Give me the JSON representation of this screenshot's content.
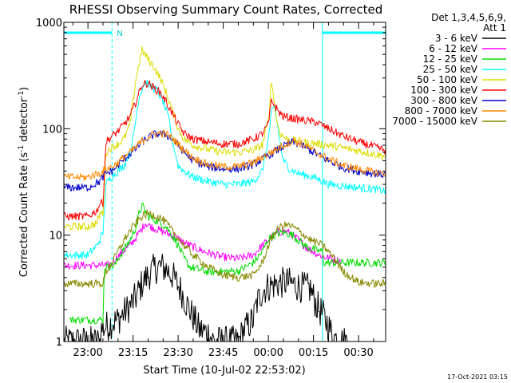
{
  "chart_data": {
    "type": "line",
    "title": "RHESSI Observing Summary Count Rates, Corrected",
    "xlabel": "Start Time (10-Jul-02 22:53:02)",
    "ylabel_main": "Corrected Count Rate (s",
    "ylabel_sup1": "-1",
    "ylabel_mid": " detector",
    "ylabel_sup2": "-1",
    "ylabel_end": ")",
    "yscale": "log",
    "ylim": [
      1,
      1000
    ],
    "xlim_min": [
      -8,
      99
    ],
    "x_units": "minutes after 23:00 on 10-Jul-02",
    "x_ticks": [
      {
        "min": 0,
        "label": "23:00"
      },
      {
        "min": 15,
        "label": "23:15"
      },
      {
        "min": 30,
        "label": "23:30"
      },
      {
        "min": 45,
        "label": "23:45"
      },
      {
        "min": 60,
        "label": "00:00"
      },
      {
        "min": 75,
        "label": "00:15"
      },
      {
        "min": 90,
        "label": "00:30"
      }
    ],
    "y_ticks": [
      {
        "value": 1,
        "label": "1"
      },
      {
        "value": 10,
        "label": "10"
      },
      {
        "value": 100,
        "label": "100"
      },
      {
        "value": 1000,
        "label": "1000"
      }
    ],
    "legend_header": [
      "Det 1,3,4,5,6,9,",
      "Att 1"
    ],
    "legend_position": "right",
    "footer_date": "17-Oct-2021 03:15",
    "night_marker": "N",
    "night_periods": [
      {
        "start_min": -8,
        "end_min": 8
      },
      {
        "start_min": 78,
        "end_min": 99
      }
    ],
    "series": [
      {
        "name": "3 - 6 keV",
        "color": "#000000",
        "x": [
          -8,
          4,
          4.5,
          8,
          10,
          13,
          16,
          18,
          20,
          22,
          24,
          26,
          28,
          31,
          33,
          35,
          37,
          40,
          42,
          50,
          52,
          55,
          56,
          58,
          60,
          63,
          66,
          68,
          70,
          72,
          74,
          75,
          76,
          78,
          80,
          81,
          82,
          84,
          87
        ],
        "y": [
          1,
          1,
          1.3,
          1.5,
          1.6,
          2.0,
          2.6,
          3.5,
          4.2,
          4.8,
          5.1,
          4.8,
          4.2,
          3.0,
          2.2,
          1.7,
          1.3,
          1.2,
          1,
          1,
          1.3,
          1.6,
          2.2,
          3.0,
          3.3,
          3.5,
          3.6,
          3.5,
          3.3,
          3.2,
          3.1,
          2.6,
          2.2,
          1.8,
          1.4,
          1.2,
          1.1,
          1,
          1
        ]
      },
      {
        "name": "6 - 12 keV",
        "color": "#ff00ff",
        "x": [
          -8,
          7,
          8,
          10,
          12,
          14,
          16,
          18,
          19,
          21,
          24,
          28,
          32,
          36,
          40,
          45,
          50,
          55,
          58,
          61,
          63,
          65,
          67,
          69,
          71,
          73,
          75,
          77,
          79,
          81,
          83,
          84
        ],
        "y": [
          5.2,
          5.2,
          5.5,
          6.3,
          7.2,
          8.0,
          9.5,
          11.5,
          13,
          12,
          11,
          10,
          8.5,
          7.5,
          6.8,
          6.2,
          6.0,
          6.5,
          8,
          9.5,
          10.5,
          11,
          10.5,
          9.5,
          8.5,
          7.5,
          7,
          6.5,
          6.2,
          6.0,
          5.8,
          5.8
        ]
      },
      {
        "name": "12 - 25 keV",
        "color": "#00dd00",
        "x": [
          -6,
          5,
          5.5,
          9,
          10,
          12,
          14,
          16,
          17,
          18,
          19,
          20,
          22,
          24,
          26,
          28,
          30,
          32,
          34,
          40,
          50,
          55,
          58,
          60,
          62,
          64,
          66,
          68,
          70,
          72,
          74,
          76,
          78,
          78.5,
          82,
          90,
          99
        ],
        "y": [
          1.6,
          1.6,
          5.0,
          5.2,
          6.0,
          7.3,
          9.0,
          12,
          16,
          19,
          17,
          15,
          14,
          13,
          12,
          10,
          8.0,
          6.0,
          5.0,
          4.5,
          4.6,
          5.5,
          7,
          9.2,
          10,
          10.5,
          10.5,
          10,
          9.0,
          8.0,
          7.5,
          7.2,
          7.0,
          5.5,
          5.5,
          5.5,
          5.5
        ]
      },
      {
        "name": "25 - 50 keV",
        "color": "#00ffff",
        "x": [
          -8,
          0,
          3,
          5,
          6,
          8,
          10,
          12,
          14,
          15,
          17,
          19,
          21,
          23,
          25,
          27,
          28,
          29,
          30,
          32,
          35,
          40,
          45,
          50,
          55,
          58,
          60,
          61,
          62,
          63,
          64,
          65,
          67,
          70,
          75,
          78,
          80,
          85,
          90,
          95,
          99
        ],
        "y": [
          6.5,
          6.5,
          8.0,
          10.5,
          30,
          36,
          40,
          45,
          60,
          80,
          200,
          280,
          250,
          230,
          180,
          120,
          80,
          60,
          45,
          40,
          35,
          32,
          30,
          30,
          32,
          40,
          80,
          140,
          160,
          110,
          70,
          50,
          42,
          38,
          35,
          32,
          30,
          29,
          28,
          27,
          26
        ]
      },
      {
        "name": "50 - 100 keV",
        "color": "#dddd00",
        "x": [
          -8,
          0,
          3,
          4,
          5,
          6,
          8,
          10,
          12,
          14,
          16,
          18,
          20,
          22,
          24,
          26,
          28,
          30,
          32,
          35,
          40,
          45,
          50,
          55,
          58,
          60,
          61,
          62,
          63,
          64,
          66,
          70,
          75,
          80,
          85,
          90,
          95,
          99
        ],
        "y": [
          12,
          12,
          13,
          16,
          16,
          60,
          67,
          72,
          80,
          110,
          300,
          550,
          450,
          380,
          300,
          220,
          150,
          100,
          80,
          70,
          64,
          60,
          60,
          63,
          70,
          120,
          280,
          180,
          110,
          90,
          80,
          76,
          73,
          70,
          66,
          62,
          58,
          55
        ]
      },
      {
        "name": "100 - 300 keV",
        "color": "#ff0000",
        "x": [
          -8,
          0,
          3,
          4,
          5,
          6,
          8,
          10,
          12,
          14,
          16,
          18,
          20,
          22,
          24,
          26,
          28,
          30,
          32,
          35,
          40,
          45,
          50,
          55,
          58,
          60,
          61,
          62,
          63,
          65,
          68,
          72,
          76,
          80,
          85,
          90,
          95,
          99
        ],
        "y": [
          15,
          15,
          17,
          20,
          20,
          75,
          85,
          95,
          110,
          130,
          180,
          260,
          270,
          240,
          220,
          180,
          140,
          110,
          90,
          80,
          75,
          72,
          72,
          80,
          90,
          110,
          180,
          170,
          150,
          130,
          125,
          120,
          115,
          100,
          85,
          75,
          68,
          62
        ]
      },
      {
        "name": "300 - 800 keV",
        "color": "#0000cc",
        "x": [
          -8,
          0,
          2,
          4,
          5,
          6,
          8,
          10,
          12,
          14,
          16,
          18,
          20,
          22,
          24,
          26,
          28,
          30,
          32,
          35,
          40,
          45,
          50,
          55,
          60,
          65,
          68,
          70,
          72,
          75,
          80,
          85,
          90,
          95,
          99
        ],
        "y": [
          28,
          28,
          30,
          32,
          35,
          38,
          40,
          45,
          52,
          58,
          65,
          75,
          82,
          88,
          90,
          88,
          80,
          70,
          60,
          50,
          44,
          42,
          42,
          46,
          56,
          68,
          75,
          72,
          68,
          60,
          50,
          43,
          40,
          38,
          37
        ]
      },
      {
        "name": "800 - 7000 keV",
        "color": "#ff8800",
        "x": [
          -8,
          0,
          2,
          4,
          5,
          6,
          8,
          10,
          12,
          14,
          16,
          18,
          20,
          22,
          24,
          26,
          28,
          30,
          32,
          35,
          40,
          45,
          50,
          55,
          60,
          65,
          68,
          70,
          72,
          75,
          80,
          85,
          90,
          95,
          99
        ],
        "y": [
          35,
          35,
          37,
          38,
          40,
          42,
          44,
          48,
          54,
          60,
          67,
          77,
          84,
          89,
          91,
          89,
          82,
          72,
          63,
          53,
          46,
          44,
          44,
          48,
          58,
          70,
          77,
          74,
          70,
          62,
          52,
          45,
          42,
          39,
          38
        ]
      },
      {
        "name": "7000 - 15000 keV",
        "color": "#888800",
        "x": [
          -8,
          0,
          5,
          6,
          8,
          10,
          12,
          14,
          16,
          18,
          20,
          22,
          24,
          26,
          28,
          30,
          32,
          35,
          40,
          45,
          50,
          55,
          58,
          60,
          62,
          64,
          66,
          68,
          70,
          72,
          74,
          76,
          78,
          80,
          82,
          85,
          90,
          95,
          99
        ],
        "y": [
          3.5,
          3.5,
          3.5,
          4.5,
          5.5,
          7,
          9,
          11,
          13,
          15,
          16,
          15.5,
          14.5,
          13,
          11,
          9.5,
          8,
          6.5,
          5,
          4.2,
          4.0,
          4.2,
          5.5,
          8,
          10.5,
          12,
          12.5,
          12,
          11,
          10,
          9,
          8.5,
          8,
          7,
          6,
          4.5,
          3.6,
          3.5,
          3.5
        ]
      }
    ]
  }
}
